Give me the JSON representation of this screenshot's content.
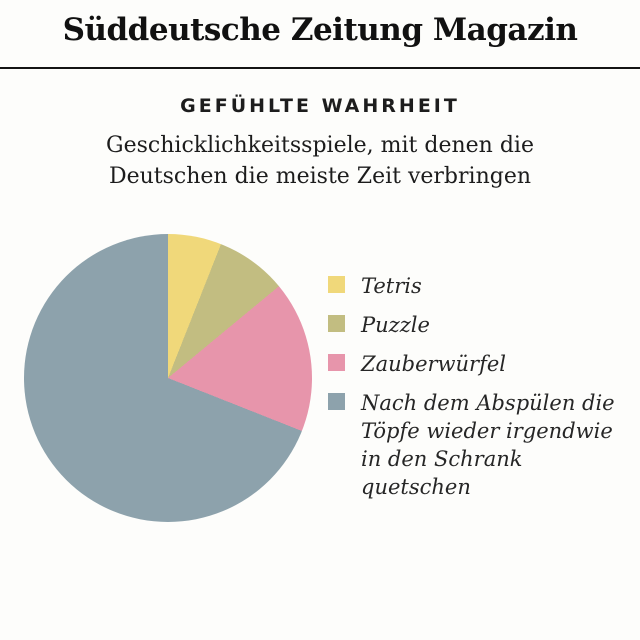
{
  "masthead": {
    "title": "Süddeutsche Zeitung Magazin"
  },
  "header": {
    "kicker": "GEFÜHLTE WAHRHEIT",
    "subtitle_lines": [
      "Geschicklichkeitsspiele, mit denen die",
      "Deutschen die meiste Zeit verbringen"
    ]
  },
  "chart_data": {
    "type": "pie",
    "title": "GEFÜHLTE WAHRHEIT",
    "subtitle": "Geschicklichkeitsspiele, mit denen die Deutschen die meiste Zeit verbringen",
    "legend_position": "right",
    "start_angle_deg": 0,
    "direction": "clockwise",
    "values_are_percent_estimates": true,
    "slices": [
      {
        "label": "Tetris",
        "value": 6,
        "color": "#f0d87a"
      },
      {
        "label": "Puzzle",
        "value": 8,
        "color": "#c2bd81"
      },
      {
        "label": "Zauberwürfel",
        "value": 17,
        "color": "#e795ab"
      },
      {
        "label": "Nach dem Abspülen die Töpfe wieder irgendwie in den Schrank quetschen",
        "value": 69,
        "color": "#8da2ac"
      }
    ]
  },
  "colors": {
    "background": "#fdfdfb",
    "rule": "#141414",
    "text": "#1c1c1c"
  }
}
